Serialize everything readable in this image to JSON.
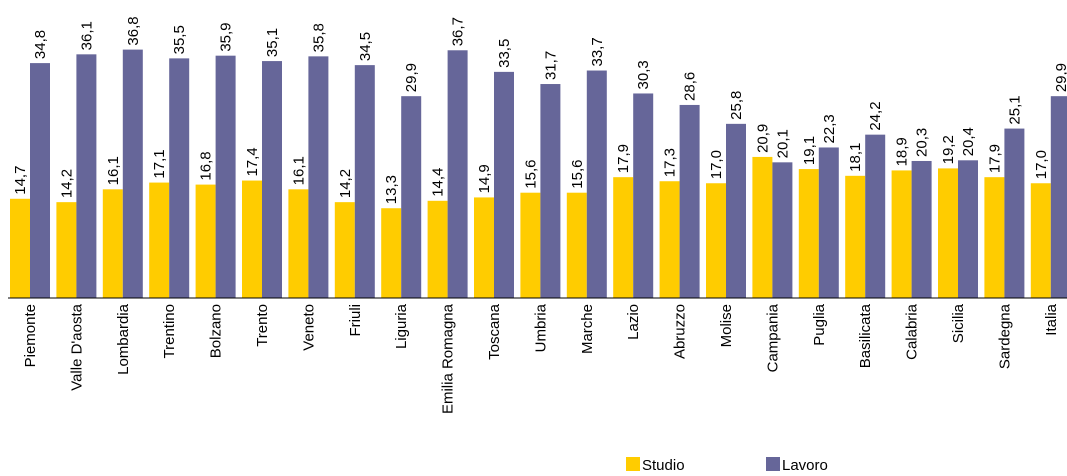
{
  "chart_data": {
    "type": "bar",
    "categories": [
      "Piemonte",
      "Valle D'aosta",
      "Lombardia",
      "Trentino",
      "Bolzano",
      "Trento",
      "Veneto",
      "Friuli",
      "Liguria",
      "Emilia Romagna",
      "Toscana",
      "Umbria",
      "Marche",
      "Lazio",
      "Abruzzo",
      "Molise",
      "Campania",
      "Puglia",
      "Basilicata",
      "Calabria",
      "Sicilia",
      "Sardegna",
      "Italia"
    ],
    "series": [
      {
        "name": "Studio",
        "color": "#FFCC00",
        "values": [
          14.7,
          14.2,
          16.1,
          17.1,
          16.8,
          17.4,
          16.1,
          14.2,
          13.3,
          14.4,
          14.9,
          15.6,
          15.6,
          17.9,
          17.3,
          17.0,
          20.9,
          19.1,
          18.1,
          18.9,
          19.2,
          17.9,
          17.0
        ],
        "labels": [
          "14,7",
          "14,2",
          "16,1",
          "17,1",
          "16,8",
          "17,4",
          "16,1",
          "14,2",
          "13,3",
          "14,4",
          "14,9",
          "15,6",
          "15,6",
          "17,9",
          "17,3",
          "17,0",
          "20,9",
          "19,1",
          "18,1",
          "18,9",
          "19,2",
          "17,9",
          "17,0"
        ]
      },
      {
        "name": "Lavoro",
        "color": "#666699",
        "values": [
          34.8,
          36.1,
          36.8,
          35.5,
          35.9,
          35.1,
          35.8,
          34.5,
          29.9,
          36.7,
          33.5,
          31.7,
          33.7,
          30.3,
          28.6,
          25.8,
          20.1,
          22.3,
          24.2,
          20.3,
          20.4,
          25.1,
          29.9
        ],
        "labels": [
          "34,8",
          "36,1",
          "36,8",
          "35,5",
          "35,9",
          "35,1",
          "35,8",
          "34,5",
          "29,9",
          "36,7",
          "33,5",
          "31,7",
          "33,7",
          "30,3",
          "28,6",
          "25,8",
          "20,1",
          "22,3",
          "24,2",
          "20,3",
          "20,4",
          "25,1",
          "29,9"
        ]
      }
    ],
    "ylim": [
      0,
      40
    ],
    "grid": false,
    "legend": "bottom"
  }
}
